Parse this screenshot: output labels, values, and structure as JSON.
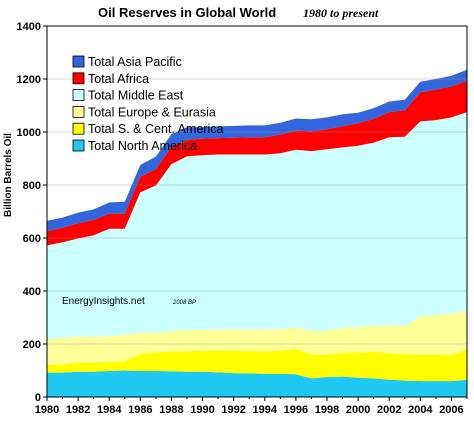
{
  "chart_data": {
    "type": "area",
    "stacked": true,
    "title": "Oil Reserves in Global World",
    "subtitle": "1980 to present",
    "xlabel": "",
    "ylabel": "Billion Barrels Oil",
    "xlim": [
      1980,
      2007
    ],
    "ylim": [
      0,
      1400
    ],
    "x_ticks": [
      "1980",
      "1982",
      "1984",
      "1986",
      "1988",
      "1990",
      "1992",
      "1994",
      "1996",
      "1998",
      "2000",
      "2002",
      "2004",
      "2006"
    ],
    "y_ticks": [
      "0",
      "200",
      "400",
      "600",
      "800",
      "1000",
      "1200",
      "1400"
    ],
    "legend_position": "top-left",
    "annotations": [
      "EnergyInsights.net",
      "2008 BP"
    ],
    "x": [
      1980,
      1981,
      1982,
      1983,
      1984,
      1985,
      1986,
      1987,
      1988,
      1989,
      1990,
      1991,
      1992,
      1993,
      1994,
      1995,
      1996,
      1997,
      1998,
      1999,
      2000,
      2001,
      2002,
      2003,
      2004,
      2005,
      2006,
      2007
    ],
    "series": [
      {
        "name": "Total North America",
        "color": "#1ec8f0",
        "values": [
          92,
          92,
          95,
          95,
          98,
          100,
          98,
          98,
          97,
          95,
          95,
          93,
          90,
          89,
          88,
          87,
          86,
          70,
          75,
          77,
          73,
          70,
          65,
          62,
          60,
          60,
          60,
          65
        ]
      },
      {
        "name": "Total S. & Cent. America",
        "color": "#ffff00",
        "values": [
          30,
          32,
          35,
          35,
          35,
          35,
          65,
          70,
          75,
          78,
          80,
          82,
          85,
          85,
          85,
          88,
          95,
          90,
          85,
          90,
          95,
          100,
          100,
          100,
          100,
          100,
          100,
          115
        ]
      },
      {
        "name": "Total Europe & Eurasia",
        "color": "#ffff99",
        "values": [
          95,
          100,
          98,
          97,
          97,
          100,
          80,
          75,
          77,
          80,
          78,
          80,
          80,
          80,
          82,
          80,
          82,
          88,
          90,
          95,
          95,
          100,
          105,
          105,
          145,
          150,
          155,
          145
        ]
      },
      {
        "name": "Total Middle East",
        "color": "#ccffff",
        "values": [
          355,
          360,
          370,
          383,
          405,
          400,
          530,
          555,
          630,
          655,
          660,
          660,
          660,
          661,
          660,
          665,
          670,
          680,
          685,
          680,
          685,
          690,
          710,
          715,
          735,
          735,
          740,
          750
        ]
      },
      {
        "name": "Total Africa",
        "color": "#ff0000",
        "values": [
          53,
          55,
          58,
          58,
          57,
          57,
          58,
          62,
          65,
          62,
          62,
          62,
          63,
          65,
          65,
          70,
          72,
          75,
          75,
          80,
          85,
          90,
          95,
          100,
          110,
          115,
          117,
          118
        ]
      },
      {
        "name": "Total Asia Pacific",
        "color": "#3366dd",
        "values": [
          40,
          38,
          40,
          40,
          42,
          45,
          45,
          47,
          48,
          48,
          43,
          44,
          45,
          45,
          45,
          45,
          46,
          45,
          45,
          45,
          40,
          40,
          40,
          40,
          40,
          40,
          40,
          42
        ]
      }
    ]
  },
  "legend_order": [
    "Total Asia Pacific",
    "Total Africa",
    "Total Middle East",
    "Total Europe & Eurasia",
    "Total S. & Cent. America",
    "Total North America"
  ]
}
